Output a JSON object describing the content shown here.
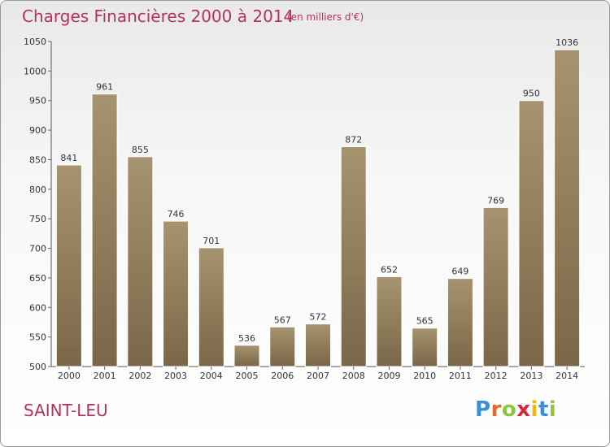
{
  "title": "Charges Financières 2000 à 2014",
  "subtitle": "(en milliers d'€)",
  "commune": "SAINT-LEU",
  "logo": {
    "letters": [
      "P",
      "r",
      "o",
      "x",
      "i",
      "t",
      "i"
    ],
    "colors": [
      "#3a8fd6",
      "#e8692b",
      "#8cc63f",
      "#d9263b",
      "#f2b705",
      "#3a8fd6",
      "#8cc63f"
    ]
  },
  "colors": {
    "bar": "#8f7b5c",
    "accent": "#b5325f"
  },
  "chart_data": {
    "type": "bar",
    "categories": [
      "2000",
      "2001",
      "2002",
      "2003",
      "2004",
      "2005",
      "2006",
      "2007",
      "2008",
      "2009",
      "2010",
      "2011",
      "2012",
      "2013",
      "2014"
    ],
    "values": [
      841,
      961,
      855,
      746,
      701,
      536,
      567,
      572,
      872,
      652,
      565,
      649,
      769,
      950,
      1036
    ],
    "title": "Charges Financières 2000 à 2014",
    "ylim": [
      500,
      1050
    ],
    "yticks": [
      500,
      550,
      600,
      650,
      700,
      750,
      800,
      850,
      900,
      950,
      1000,
      1050
    ],
    "grid": true,
    "legend": "none"
  }
}
